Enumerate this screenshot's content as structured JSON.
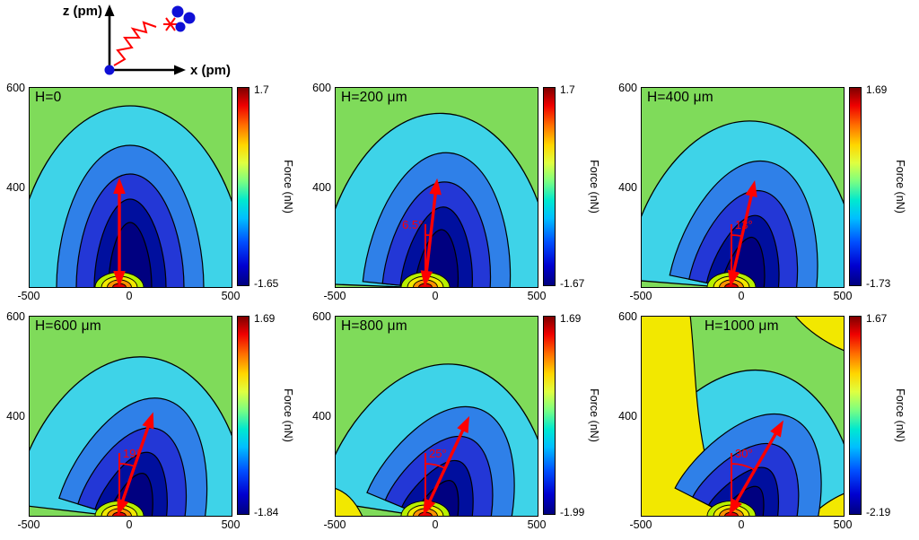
{
  "figure": {
    "inset": {
      "z_axis_label": "z (pm)",
      "x_axis_label": "x (pm)"
    },
    "colorbar_label": "Force (nN)",
    "x_ticks": [
      "-500",
      "0",
      "500"
    ],
    "y_ticks": [
      "600",
      "400"
    ],
    "panels": [
      {
        "title": "H=0",
        "cbar_max": "1.7",
        "cbar_min": "-1.65",
        "angle_label": "",
        "angle_deg": 0
      },
      {
        "title": "H=200 μm",
        "cbar_max": "1.7",
        "cbar_min": "-1.67",
        "angle_label": "6.5°",
        "angle_deg": 6.5
      },
      {
        "title": "H=400 μm",
        "cbar_max": "1.69",
        "cbar_min": "-1.73",
        "angle_label": "13°",
        "angle_deg": 13
      },
      {
        "title": "H=600 μm",
        "cbar_max": "1.69",
        "cbar_min": "-1.84",
        "angle_label": "19°",
        "angle_deg": 19
      },
      {
        "title": "H=800 μm",
        "cbar_max": "1.69",
        "cbar_min": "-1.99",
        "angle_label": "25°",
        "angle_deg": 25
      },
      {
        "title": "H=1000 μm",
        "cbar_max": "1.67",
        "cbar_min": "-2.19",
        "angle_label": "30°",
        "angle_deg": 30
      }
    ]
  },
  "chart_data": {
    "type": "heatmap",
    "subtype": "filled_contour_grid_2x3",
    "colormap": "jet",
    "xlabel": "x (pm)",
    "ylabel": "z (pm)",
    "xlim": [
      -500,
      500
    ],
    "ylim_est": [
      200,
      600
    ],
    "x_ticks": [
      -500,
      0,
      500
    ],
    "y_ticks": [
      400,
      600
    ],
    "colorbar_label": "Force (nN)",
    "legend_position": "colorbar-right-of-each-panel",
    "grid": false,
    "panels": [
      {
        "title": "H=0",
        "H_um": 0,
        "force_nN_min": -1.65,
        "force_nN_max": 1.7,
        "arrow_tilt_deg": 0
      },
      {
        "title": "H=200 μm",
        "H_um": 200,
        "force_nN_min": -1.67,
        "force_nN_max": 1.7,
        "arrow_tilt_deg": 6.5
      },
      {
        "title": "H=400 μm",
        "H_um": 400,
        "force_nN_min": -1.73,
        "force_nN_max": 1.69,
        "arrow_tilt_deg": 13
      },
      {
        "title": "H=600 μm",
        "H_um": 600,
        "force_nN_min": -1.84,
        "force_nN_max": 1.69,
        "arrow_tilt_deg": 19
      },
      {
        "title": "H=800 μm",
        "H_um": 800,
        "force_nN_min": -1.99,
        "force_nN_max": 1.69,
        "arrow_tilt_deg": 25
      },
      {
        "title": "H=1000 μm",
        "H_um": 1000,
        "force_nN_min": -2.19,
        "force_nN_max": 1.67,
        "arrow_tilt_deg": 30
      }
    ],
    "tilt_vs_H": {
      "H_um": [
        0,
        200,
        400,
        600,
        800,
        1000
      ],
      "angle_deg": [
        0,
        6.5,
        13,
        19,
        25,
        30
      ]
    }
  }
}
